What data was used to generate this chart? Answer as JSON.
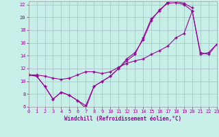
{
  "xlabel": "Windchill (Refroidissement éolien,°C)",
  "bg_color": "#c8eee8",
  "line_color": "#990099",
  "grid_color": "#aabbcc",
  "xlim": [
    0,
    23
  ],
  "ylim": [
    6,
    22.5
  ],
  "xticks": [
    0,
    1,
    2,
    3,
    4,
    5,
    6,
    7,
    8,
    9,
    10,
    11,
    12,
    13,
    14,
    15,
    16,
    17,
    18,
    19,
    20,
    21,
    22,
    23
  ],
  "yticks": [
    6,
    8,
    10,
    12,
    14,
    16,
    18,
    20,
    22
  ],
  "curve1_x": [
    0,
    1,
    2,
    3,
    4,
    5,
    6,
    7,
    8,
    9,
    10,
    11,
    12,
    13,
    14,
    15,
    16,
    17,
    18,
    19,
    20
  ],
  "curve1_y": [
    11.0,
    10.8,
    9.2,
    7.2,
    8.3,
    7.8,
    7.0,
    5.8,
    9.2,
    10.0,
    10.8,
    12.0,
    13.2,
    14.2,
    16.8,
    19.8,
    21.0,
    22.4,
    22.5,
    22.2,
    21.5
  ],
  "curve2_x": [
    0,
    1,
    2,
    3,
    4,
    5,
    6,
    7,
    8,
    9,
    10,
    11,
    12,
    13,
    14,
    15,
    16,
    17,
    18,
    19,
    20,
    21,
    22,
    23
  ],
  "curve2_y": [
    11.0,
    10.8,
    9.2,
    7.2,
    8.3,
    7.8,
    7.0,
    6.2,
    9.2,
    10.0,
    10.8,
    12.0,
    13.5,
    14.5,
    16.5,
    19.5,
    21.2,
    22.2,
    22.3,
    22.0,
    21.0,
    14.5,
    14.2,
    15.8
  ],
  "curve3_x": [
    0,
    1,
    2,
    3,
    4,
    5,
    6,
    7,
    8,
    9,
    10,
    11,
    12,
    13,
    14,
    15,
    16,
    17,
    18,
    19,
    20,
    21,
    22,
    23
  ],
  "curve3_y": [
    11.0,
    11.0,
    10.8,
    10.5,
    10.3,
    10.5,
    11.0,
    11.5,
    11.5,
    11.2,
    11.5,
    12.2,
    12.8,
    13.2,
    13.5,
    14.2,
    14.8,
    15.5,
    16.8,
    17.5,
    21.0,
    14.2,
    14.5,
    15.8
  ]
}
